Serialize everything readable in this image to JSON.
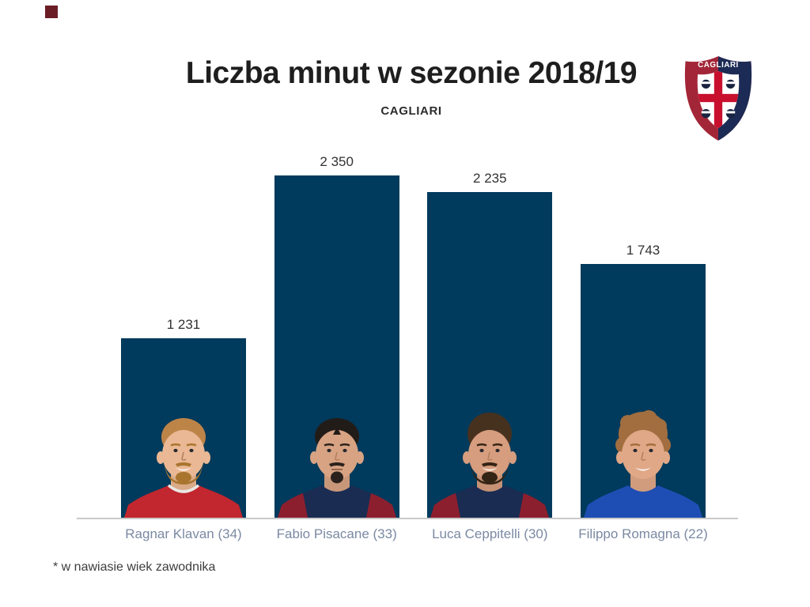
{
  "page": {
    "background": "#ffffff"
  },
  "decor": {
    "red_square_color": "#6b1d26"
  },
  "header": {
    "title": "Liczba minut w sezonie 2018/19",
    "subtitle": "CAGLIARI"
  },
  "logo": {
    "text": "CAGLIARI",
    "red": "#a32638",
    "navy": "#1c2b55",
    "inner_shield": "#ffffff",
    "cross": "#c8102e",
    "moor_head": "#1a2440",
    "bandana": "#ffffff",
    "text_color": "#ffffff"
  },
  "chart_data": {
    "type": "bar",
    "title": "Liczba minut w sezonie 2018/19",
    "subtitle": "CAGLIARI",
    "categories": [
      "Ragnar Klavan (34)",
      "Fabio Pisacane (33)",
      "Luca Ceppitelli (30)",
      "Filippo Romagna (22)"
    ],
    "values": [
      1231,
      2350,
      2235,
      1743
    ],
    "value_labels": [
      "1 231",
      "2 350",
      "2 235",
      "1 743"
    ],
    "bar_color": "#003a5c",
    "axis_color": "#c9c9c9",
    "value_label_color": "#323232",
    "category_label_color": "#7b89a3",
    "ylim": [
      0,
      2500
    ],
    "grid": false,
    "legend": false,
    "xlabel": "",
    "ylabel": ""
  },
  "players": [
    {
      "name": "Ragnar Klavan (34)",
      "minutes": 1231,
      "value_label": "1 231",
      "avatar": {
        "skin": "#eab894",
        "hair": "#bd8448",
        "beard": "#a9742d",
        "beard_style": "full",
        "shirt": "#c2262e",
        "shirt_accent": "#e9e7e3",
        "shirt_style": "trim",
        "hair_style": "short",
        "smile": true
      }
    },
    {
      "name": "Fabio Pisacane (33)",
      "minutes": 2350,
      "value_label": "2 350",
      "avatar": {
        "skin": "#d8a383",
        "hair": "#221c19",
        "beard": "#2a211c",
        "beard_style": "goatee",
        "shirt": "#1a2c52",
        "shirt_accent": "#8c1f2e",
        "shirt_style": "panels",
        "hair_style": "slick",
        "smile": false
      }
    },
    {
      "name": "Luca Ceppitelli (30)",
      "minutes": 2235,
      "value_label": "2 235",
      "avatar": {
        "skin": "#d69d7e",
        "hair": "#46311f",
        "beard": "#342415",
        "beard_style": "full",
        "shirt": "#1a2c52",
        "shirt_accent": "#8c1f2e",
        "shirt_style": "panels",
        "hair_style": "quiff",
        "smile": true
      }
    },
    {
      "name": "Filippo Romagna (22)",
      "minutes": 1743,
      "value_label": "1 743",
      "avatar": {
        "skin": "#e0a887",
        "hair": "#a26e3f",
        "beard": null,
        "beard_style": null,
        "shirt": "#1e4eb4",
        "shirt_accent": "#1e4eb4",
        "shirt_style": "plain",
        "hair_style": "wavy",
        "smile": true
      }
    }
  ],
  "footnote": "* w nawiasie wiek zawodnika"
}
